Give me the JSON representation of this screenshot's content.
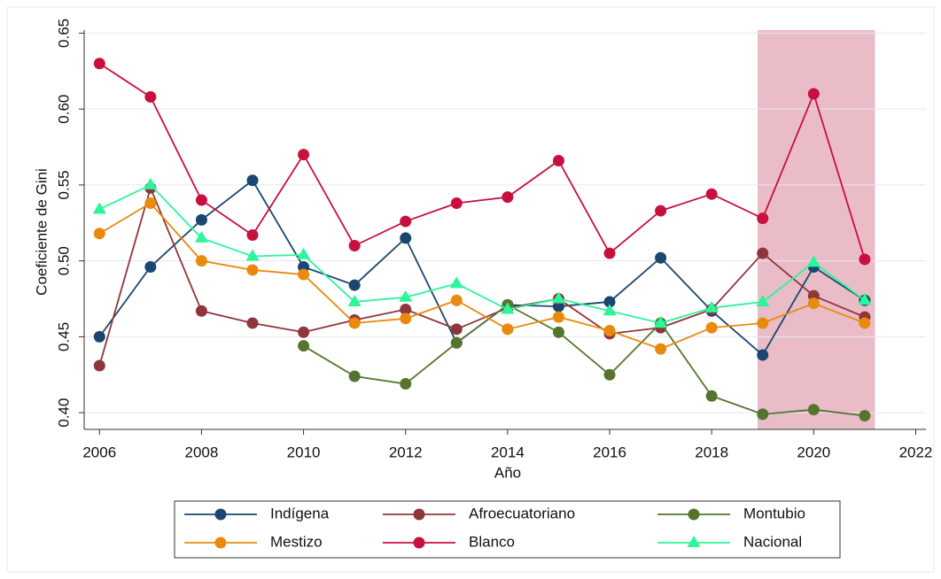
{
  "chart_data": {
    "type": "line",
    "x": [
      2006,
      2007,
      2008,
      2009,
      2010,
      2011,
      2012,
      2013,
      2014,
      2015,
      2016,
      2017,
      2018,
      2019,
      2020,
      2021
    ],
    "series": [
      {
        "name": "Indígena",
        "color": "#1a476f",
        "marker": "circle",
        "values": [
          0.45,
          0.496,
          0.527,
          0.553,
          0.496,
          0.484,
          0.515,
          0.446,
          0.471,
          0.47,
          0.473,
          0.502,
          0.467,
          0.438,
          0.496,
          0.474
        ]
      },
      {
        "name": "Afroecuatoriano",
        "color": "#90353b",
        "marker": "circle",
        "values": [
          0.431,
          0.548,
          0.467,
          0.459,
          0.453,
          0.461,
          0.468,
          0.455,
          0.469,
          0.475,
          0.452,
          0.456,
          0.468,
          0.505,
          0.477,
          0.463
        ]
      },
      {
        "name": "Montubio",
        "color": "#55752f",
        "marker": "circle",
        "values": [
          null,
          null,
          null,
          null,
          0.444,
          0.424,
          0.419,
          0.446,
          0.471,
          0.453,
          0.425,
          0.459,
          0.411,
          0.399,
          0.402,
          0.398
        ]
      },
      {
        "name": "Mestizo",
        "color": "#e88a0c",
        "marker": "circle",
        "values": [
          0.518,
          0.538,
          0.5,
          0.494,
          0.491,
          0.459,
          0.462,
          0.474,
          0.455,
          0.463,
          0.454,
          0.442,
          0.456,
          0.459,
          0.472,
          0.459
        ]
      },
      {
        "name": "Blanco",
        "color": "#c8103e",
        "marker": "circle",
        "values": [
          0.63,
          0.608,
          0.54,
          0.517,
          0.57,
          0.51,
          0.526,
          0.538,
          0.542,
          0.566,
          0.505,
          0.533,
          0.544,
          0.528,
          0.61,
          0.501
        ]
      },
      {
        "name": "Nacional",
        "color": "#2cf59a",
        "marker": "triangle",
        "values": [
          0.534,
          0.55,
          0.515,
          0.503,
          0.504,
          0.473,
          0.476,
          0.485,
          0.468,
          0.475,
          0.467,
          0.459,
          0.469,
          0.473,
          0.499,
          0.474
        ]
      }
    ],
    "shaded_span": [
      2018.9,
      2021.2
    ],
    "shade_color": "#e9bcc8",
    "x_label": "Año",
    "y_label": "Coeficiente de Gini",
    "xlim": [
      2005.7,
      2022.2
    ],
    "ylim": [
      0.389,
      0.652
    ],
    "xticks": [
      2006,
      2008,
      2010,
      2012,
      2014,
      2016,
      2018,
      2020,
      2022
    ],
    "yticks": [
      {
        "value": 0.4,
        "label": "0.40"
      },
      {
        "value": 0.45,
        "label": "0.45"
      },
      {
        "value": 0.5,
        "label": "0.50"
      },
      {
        "value": 0.55,
        "label": "0.55"
      },
      {
        "value": 0.6,
        "label": "0.60"
      },
      {
        "value": 0.65,
        "label": "0.65"
      }
    ],
    "grid": true,
    "legend": "bottom"
  }
}
